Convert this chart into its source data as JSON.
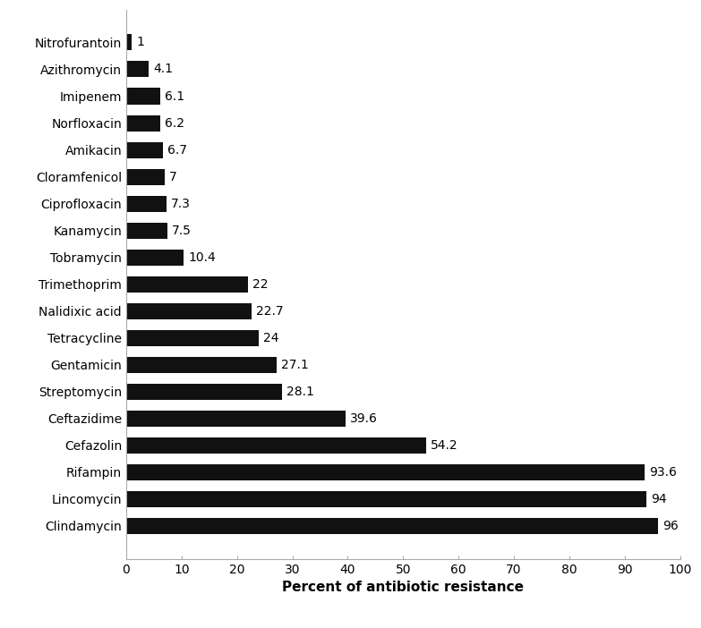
{
  "categories": [
    "Nitrofurantoin",
    "Azithromycin",
    "Imipenem",
    "Norfloxacin",
    "Amikacin",
    "Cloramfenicol",
    "Ciprofloxacin",
    "Kanamycin",
    "Tobramycin",
    "Trimethoprim",
    "Nalidixic acid",
    "Tetracycline",
    "Gentamicin",
    "Streptomycin",
    "Ceftazidime",
    "Cefazolin",
    "Rifampin",
    "Lincomycin",
    "Clindamycin"
  ],
  "values": [
    1,
    4.1,
    6.1,
    6.2,
    6.7,
    7,
    7.3,
    7.5,
    10.4,
    22,
    22.7,
    24,
    27.1,
    28.1,
    39.6,
    54.2,
    93.6,
    94,
    96
  ],
  "bar_color": "#111111",
  "xlabel": "Percent of antibiotic resistance",
  "xlabel_fontsize": 11,
  "xlabel_fontweight": "bold",
  "xlim": [
    0,
    100
  ],
  "xticks": [
    0,
    10,
    20,
    30,
    40,
    50,
    60,
    70,
    80,
    90,
    100
  ],
  "label_fontsize": 10,
  "value_fontsize": 10,
  "bar_height": 0.6,
  "background_color": "#ffffff",
  "spine_color": "#aaaaaa"
}
